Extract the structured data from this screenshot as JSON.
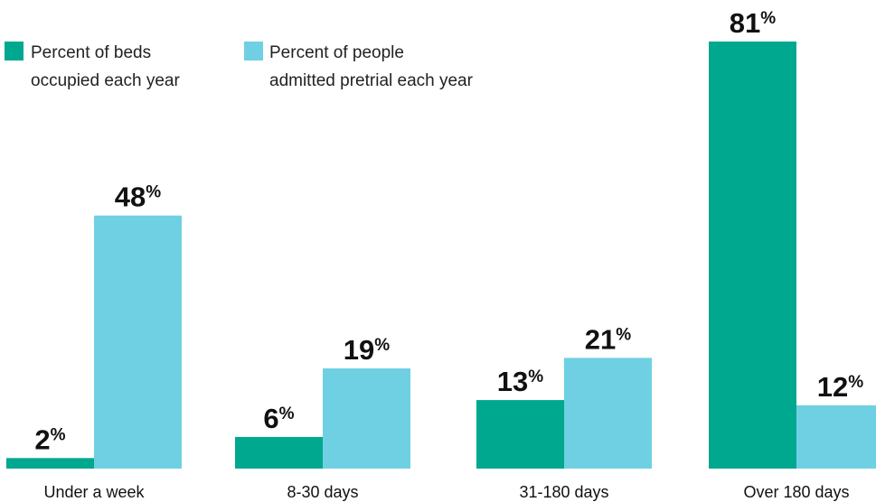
{
  "chart_data": {
    "type": "bar",
    "categories": [
      "Under a week",
      "8-30 days",
      "31-180 days",
      "Over 180 days"
    ],
    "series": [
      {
        "name": "Percent of beds occupied each year",
        "values": [
          2,
          6,
          13,
          81
        ],
        "color": "#00a88f"
      },
      {
        "name": "Percent of people admitted pretrial each year",
        "values": [
          48,
          19,
          21,
          12
        ],
        "color": "#6fd0e3"
      }
    ],
    "value_suffix": "%",
    "ylim": [
      0,
      81
    ],
    "grid": false,
    "legend_position": "top-left"
  },
  "legend": [
    {
      "line1": "Percent of beds",
      "line2": "occupied each year"
    },
    {
      "line1": "Percent of people",
      "line2": "admitted pretrial each year"
    }
  ]
}
